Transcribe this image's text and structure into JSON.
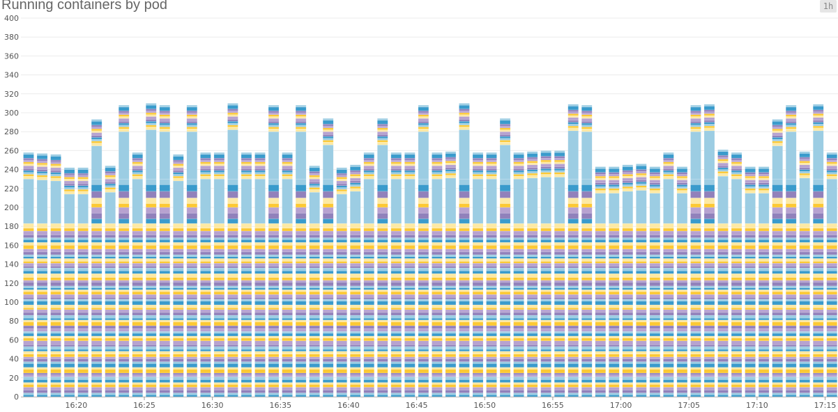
{
  "header": {
    "title": "Running containers by pod",
    "timeframe": "1h"
  },
  "chart_data": {
    "type": "bar",
    "stacked": true,
    "title": "Running containers by pod",
    "xlabel": "",
    "ylabel": "",
    "ylim": [
      0,
      400
    ],
    "y_ticks": [
      0,
      20,
      40,
      60,
      80,
      100,
      120,
      140,
      160,
      180,
      200,
      220,
      240,
      260,
      280,
      300,
      320,
      340,
      360,
      380,
      400
    ],
    "x_tick_labels": [
      "16:20",
      "16:25",
      "16:30",
      "16:35",
      "16:40",
      "16:45",
      "16:50",
      "16:55",
      "17:00",
      "17:05",
      "17:10",
      "17:15"
    ],
    "grid": true,
    "legend": "none",
    "categories": [
      "16:16",
      "16:17",
      "16:18",
      "16:19",
      "16:20",
      "16:21",
      "16:22",
      "16:23",
      "16:24",
      "16:25",
      "16:26",
      "16:27",
      "16:28",
      "16:29",
      "16:30",
      "16:31",
      "16:32",
      "16:33",
      "16:34",
      "16:35",
      "16:36",
      "16:37",
      "16:38",
      "16:39",
      "16:40",
      "16:41",
      "16:42",
      "16:43",
      "16:44",
      "16:45",
      "16:46",
      "16:47",
      "16:48",
      "16:49",
      "16:50",
      "16:51",
      "16:52",
      "16:53",
      "16:54",
      "16:55",
      "16:56",
      "16:57",
      "16:58",
      "16:59",
      "17:00",
      "17:01",
      "17:02",
      "17:03",
      "17:04",
      "17:05",
      "17:06",
      "17:07",
      "17:08",
      "17:09",
      "17:10",
      "17:11",
      "17:12",
      "17:13",
      "17:14",
      "17:15"
    ],
    "palette": {
      "dark-blue": "#3a9bcc",
      "light-blue": "#9ccde3",
      "dark-purple": "#9181bb",
      "light-purple": "#b7a2d0",
      "yellow": "#fcc934",
      "light-yellow": "#fde9a4"
    },
    "series": [
      {
        "color": "dark-blue",
        "value": 2
      },
      {
        "color": "light-blue",
        "value": 2
      },
      {
        "color": "dark-purple",
        "value": 3
      },
      {
        "color": "light-purple",
        "value": 3
      },
      {
        "color": "yellow",
        "value": 3
      },
      {
        "color": "light-yellow",
        "value": 2
      },
      {
        "color": "dark-blue",
        "value": 3
      },
      {
        "color": "light-blue",
        "value": 3
      },
      {
        "color": "light-purple",
        "value": 2
      },
      {
        "color": "dark-purple",
        "value": 2
      },
      {
        "color": "yellow",
        "value": 4
      },
      {
        "color": "light-yellow",
        "value": 2
      },
      {
        "color": "dark-blue",
        "value": 4
      },
      {
        "color": "light-blue",
        "value": 2
      },
      {
        "color": "dark-purple",
        "value": 3
      },
      {
        "color": "light-purple",
        "value": 2
      },
      {
        "color": "yellow",
        "value": 3
      },
      {
        "color": "light-yellow",
        "value": 3
      },
      {
        "color": "dark-blue",
        "value": 2
      },
      {
        "color": "light-blue",
        "value": 3
      },
      {
        "color": "dark-purple",
        "value": 2
      },
      {
        "color": "light-purple",
        "value": 4
      },
      {
        "color": "yellow",
        "value": 3
      },
      {
        "color": "light-yellow",
        "value": 2
      },
      {
        "color": "dark-blue",
        "value": 3
      },
      {
        "color": "light-blue",
        "value": 2
      },
      {
        "color": "light-purple",
        "value": 3
      },
      {
        "color": "dark-purple",
        "value": 3
      },
      {
        "color": "yellow",
        "value": 4
      },
      {
        "color": "light-yellow",
        "value": 2
      },
      {
        "color": "dark-blue",
        "value": 2
      },
      {
        "color": "light-blue",
        "value": 3
      },
      {
        "color": "dark-purple",
        "value": 3
      },
      {
        "color": "light-purple",
        "value": 3
      },
      {
        "color": "yellow",
        "value": 2
      },
      {
        "color": "light-yellow",
        "value": 3
      },
      {
        "color": "dark-blue",
        "value": 4
      },
      {
        "color": "light-blue",
        "value": 2
      },
      {
        "color": "dark-purple",
        "value": 2
      },
      {
        "color": "light-purple",
        "value": 3
      },
      {
        "color": "yellow",
        "value": 3
      },
      {
        "color": "light-yellow",
        "value": 2
      },
      {
        "color": "dark-blue",
        "value": 2
      },
      {
        "color": "light-blue",
        "value": 2
      },
      {
        "color": "dark-purple",
        "value": 4
      },
      {
        "color": "light-purple",
        "value": 2
      },
      {
        "color": "yellow",
        "value": 3
      },
      {
        "color": "light-yellow",
        "value": 4
      },
      {
        "color": "dark-blue",
        "value": 3
      },
      {
        "color": "light-blue",
        "value": 3
      },
      {
        "color": "dark-purple",
        "value": 2
      },
      {
        "color": "light-purple",
        "value": 3
      },
      {
        "color": "yellow",
        "value": 2
      },
      {
        "color": "light-yellow",
        "value": 3
      },
      {
        "color": "dark-blue",
        "value": 2
      },
      {
        "color": "light-blue",
        "value": 2
      },
      {
        "color": "dark-purple",
        "value": 3
      },
      {
        "color": "light-purple",
        "value": 3
      },
      {
        "color": "yellow",
        "value": 4
      },
      {
        "color": "light-yellow",
        "value": 3
      },
      {
        "color": "dark-blue",
        "value": 3
      },
      {
        "color": "light-blue",
        "value": 2
      },
      {
        "color": "dark-purple",
        "value": 3
      },
      {
        "color": "light-purple",
        "value": 4
      },
      {
        "color": "yellow",
        "value": 3
      },
      {
        "color": "light-yellow",
        "value": 5
      },
      {
        "color": "dark-blue",
        "values": [
          0,
          0,
          0,
          0,
          0,
          5,
          0,
          5,
          0,
          5,
          5,
          0,
          5,
          0,
          0,
          5,
          0,
          0,
          5,
          0,
          5,
          0,
          5,
          0,
          0,
          0,
          5,
          0,
          0,
          5,
          0,
          0,
          5,
          0,
          0,
          5,
          0,
          0,
          0,
          0,
          5,
          5,
          0,
          0,
          0,
          0,
          0,
          0,
          0,
          5,
          5,
          0,
          0,
          0,
          0,
          5,
          5,
          0,
          5,
          0
        ]
      },
      {
        "color": "dark-purple",
        "values": [
          0,
          0,
          0,
          0,
          0,
          6,
          0,
          6,
          0,
          6,
          6,
          0,
          6,
          0,
          0,
          6,
          0,
          0,
          6,
          0,
          6,
          0,
          6,
          0,
          0,
          0,
          6,
          0,
          0,
          6,
          0,
          0,
          6,
          0,
          0,
          6,
          0,
          0,
          0,
          0,
          6,
          6,
          0,
          0,
          0,
          0,
          0,
          0,
          0,
          6,
          6,
          0,
          0,
          0,
          0,
          6,
          6,
          0,
          6,
          0
        ]
      },
      {
        "color": "light-purple",
        "values": [
          0,
          0,
          0,
          0,
          0,
          6,
          0,
          6,
          0,
          6,
          6,
          0,
          6,
          0,
          0,
          6,
          0,
          0,
          6,
          0,
          6,
          0,
          6,
          0,
          0,
          0,
          6,
          0,
          0,
          6,
          0,
          0,
          6,
          0,
          0,
          6,
          0,
          0,
          0,
          0,
          6,
          6,
          0,
          0,
          0,
          0,
          0,
          0,
          0,
          6,
          6,
          0,
          0,
          0,
          0,
          6,
          6,
          0,
          6,
          0
        ]
      },
      {
        "color": "yellow",
        "values": [
          0,
          0,
          0,
          0,
          0,
          4,
          0,
          4,
          0,
          4,
          4,
          0,
          4,
          0,
          0,
          4,
          0,
          0,
          4,
          0,
          4,
          0,
          4,
          0,
          0,
          0,
          4,
          0,
          0,
          4,
          0,
          0,
          4,
          0,
          0,
          4,
          0,
          0,
          0,
          0,
          4,
          4,
          0,
          0,
          0,
          0,
          0,
          0,
          0,
          4,
          4,
          0,
          0,
          0,
          0,
          4,
          4,
          0,
          4,
          0
        ]
      },
      {
        "color": "light-yellow",
        "values": [
          0,
          0,
          0,
          0,
          0,
          6,
          0,
          6,
          0,
          6,
          6,
          0,
          6,
          0,
          0,
          6,
          0,
          0,
          6,
          0,
          6,
          0,
          6,
          0,
          0,
          0,
          6,
          0,
          0,
          6,
          0,
          0,
          6,
          0,
          0,
          6,
          0,
          0,
          0,
          0,
          6,
          6,
          0,
          0,
          0,
          0,
          0,
          0,
          0,
          6,
          6,
          0,
          0,
          0,
          0,
          6,
          6,
          0,
          6,
          0
        ]
      },
      {
        "color": "dark-purple",
        "values": [
          0,
          0,
          0,
          0,
          0,
          7,
          0,
          7,
          0,
          7,
          7,
          0,
          7,
          0,
          0,
          7,
          0,
          0,
          7,
          0,
          7,
          0,
          7,
          0,
          0,
          0,
          7,
          0,
          0,
          7,
          0,
          0,
          7,
          0,
          0,
          7,
          0,
          0,
          0,
          0,
          7,
          7,
          0,
          0,
          0,
          0,
          0,
          0,
          0,
          7,
          7,
          0,
          0,
          0,
          0,
          7,
          7,
          0,
          7,
          0
        ]
      },
      {
        "color": "dark-blue",
        "values": [
          0,
          0,
          0,
          0,
          0,
          7,
          0,
          7,
          0,
          7,
          7,
          0,
          7,
          0,
          0,
          7,
          0,
          0,
          7,
          0,
          7,
          0,
          7,
          0,
          0,
          0,
          7,
          0,
          0,
          7,
          0,
          0,
          7,
          0,
          0,
          7,
          0,
          0,
          0,
          0,
          7,
          7,
          0,
          0,
          0,
          0,
          0,
          0,
          0,
          7,
          7,
          0,
          0,
          0,
          0,
          7,
          7,
          0,
          7,
          0
        ]
      },
      {
        "color": "light-blue",
        "values": [
          0,
          0,
          0,
          0,
          0,
          6,
          0,
          6,
          0,
          6,
          6,
          0,
          6,
          0,
          0,
          6,
          0,
          0,
          6,
          0,
          6,
          0,
          6,
          0,
          0,
          0,
          6,
          0,
          0,
          6,
          0,
          0,
          6,
          0,
          0,
          6,
          0,
          0,
          0,
          0,
          6,
          6,
          0,
          0,
          0,
          0,
          0,
          0,
          0,
          6,
          6,
          0,
          0,
          0,
          0,
          6,
          6,
          0,
          6,
          0
        ]
      },
      {
        "color": "light-blue",
        "values": [
          47,
          46,
          45,
          31,
          31,
          35,
          33,
          50,
          47,
          52,
          50,
          45,
          50,
          47,
          47,
          52,
          47,
          47,
          50,
          47,
          50,
          33,
          36,
          31,
          34,
          47,
          36,
          47,
          47,
          50,
          47,
          48,
          52,
          47,
          47,
          36,
          47,
          48,
          49,
          49,
          51,
          50,
          32,
          32,
          34,
          35,
          32,
          47,
          32,
          50,
          51,
          50,
          47,
          32,
          32,
          35,
          50,
          48,
          51,
          47
        ]
      },
      {
        "color": "light-yellow",
        "value": 3
      },
      {
        "color": "yellow",
        "value": 2
      },
      {
        "color": "light-blue",
        "value": 2
      },
      {
        "color": "dark-blue",
        "value": 2
      },
      {
        "color": "dark-purple",
        "value": 2
      },
      {
        "color": "light-purple",
        "value": 3
      },
      {
        "color": "light-yellow",
        "value": 2
      },
      {
        "color": "yellow",
        "value": 2
      },
      {
        "color": "light-purple",
        "value": 2
      },
      {
        "color": "dark-purple",
        "value": 2
      },
      {
        "color": "dark-blue",
        "value": 4
      },
      {
        "color": "light-blue",
        "value": 2
      }
    ]
  }
}
